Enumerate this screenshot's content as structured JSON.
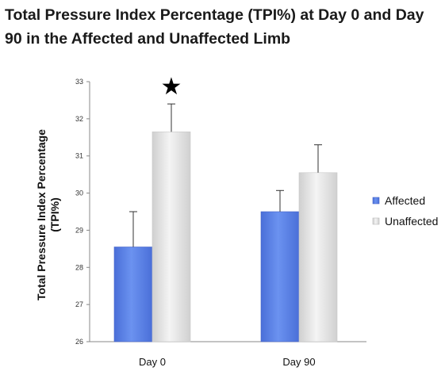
{
  "chart_data": {
    "type": "bar",
    "title": "Total Pressure Index Percentage (TPI%) at Day 0 and Day 90 in the Affected and Unaffected Limb",
    "xlabel": "",
    "ylabel": "Total Pressure Index Percentage (TPI%)",
    "ylabel_lines": [
      "Total Pressure Index Percentage",
      "(TPI%)"
    ],
    "categories": [
      "Day 0",
      "Day 90"
    ],
    "ylim": [
      26,
      33
    ],
    "yticks": [
      26,
      27,
      28,
      29,
      30,
      31,
      32,
      33
    ],
    "series": [
      {
        "name": "Affected",
        "values": [
          28.55,
          29.5
        ],
        "errors": [
          0.95,
          0.57
        ],
        "color": "#5b82e8"
      },
      {
        "name": "Unaffected",
        "values": [
          31.65,
          30.55
        ],
        "errors": [
          0.75,
          0.75
        ],
        "color": "#e0e0e0"
      }
    ],
    "annotations": [
      {
        "type": "significance-star",
        "symbol": "★",
        "category": "Day 0",
        "series": "Unaffected"
      }
    ],
    "legend": "right",
    "grid": false
  }
}
